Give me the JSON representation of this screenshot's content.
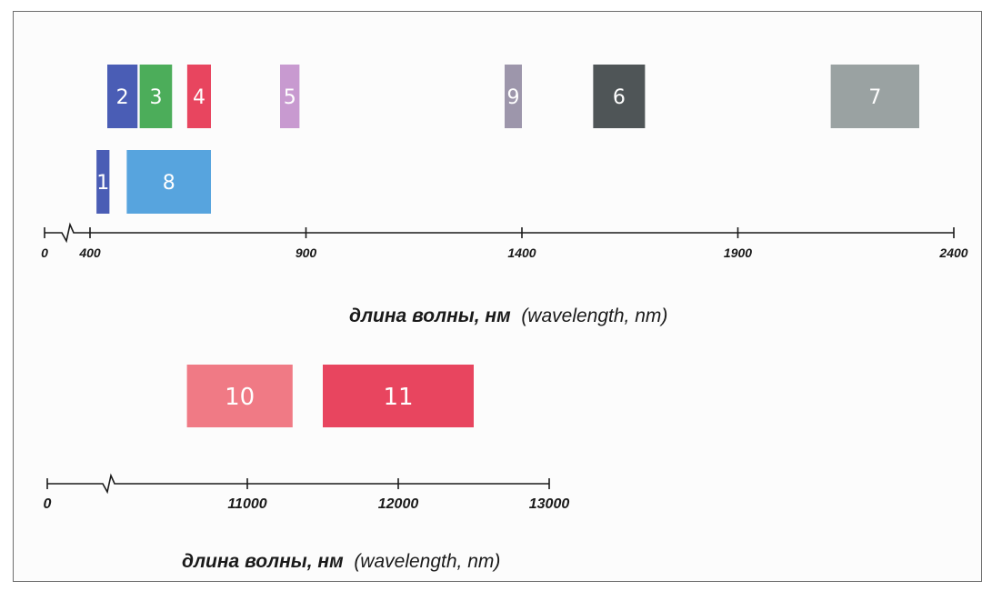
{
  "chart_data": [
    {
      "type": "range-bar",
      "xlabel_ru": "длина волны, нм",
      "xlabel_en": "(wavelength, nm)",
      "ticks": [
        {
          "value": 0,
          "label": "0"
        },
        {
          "value": 400,
          "label": "400"
        },
        {
          "value": 900,
          "label": "900"
        },
        {
          "value": 1400,
          "label": "1400"
        },
        {
          "value": 1900,
          "label": "1900"
        },
        {
          "value": 2400,
          "label": "2400"
        }
      ],
      "axis_break_between": [
        0,
        400
      ],
      "bands": [
        {
          "label": "2",
          "start": 440,
          "end": 510,
          "row": 1,
          "color": "#4a5db5"
        },
        {
          "label": "3",
          "start": 515,
          "end": 590,
          "row": 1,
          "color": "#4cad5a"
        },
        {
          "label": "4",
          "start": 625,
          "end": 680,
          "row": 1,
          "color": "#e8455f"
        },
        {
          "label": "5",
          "start": 840,
          "end": 885,
          "row": 1,
          "color": "#c89ad0"
        },
        {
          "label": "9",
          "start": 1360,
          "end": 1400,
          "row": 1,
          "color": "#9d96ab"
        },
        {
          "label": "6",
          "start": 1565,
          "end": 1685,
          "row": 1,
          "color": "#4f5557"
        },
        {
          "label": "7",
          "start": 2115,
          "end": 2320,
          "row": 1,
          "color": "#9aa2a2"
        },
        {
          "label": "1",
          "start": 415,
          "end": 445,
          "row": 2,
          "color": "#4a5db5"
        },
        {
          "label": "8",
          "start": 485,
          "end": 680,
          "row": 2,
          "color": "#57a4de"
        }
      ]
    },
    {
      "type": "range-bar",
      "xlabel_ru": "длина волны, нм",
      "xlabel_en": "(wavelength, nm)",
      "ticks": [
        {
          "value": 0,
          "label": "0"
        },
        {
          "value": 11000,
          "label": "11000"
        },
        {
          "value": 12000,
          "label": "12000"
        },
        {
          "value": 13000,
          "label": "13000"
        }
      ],
      "axis_break_between": [
        0,
        11000
      ],
      "bands": [
        {
          "label": "10",
          "start": 10600,
          "end": 11300,
          "row": 1,
          "color": "#f07a85"
        },
        {
          "label": "11",
          "start": 11500,
          "end": 12500,
          "row": 1,
          "color": "#e8455f"
        }
      ]
    }
  ]
}
